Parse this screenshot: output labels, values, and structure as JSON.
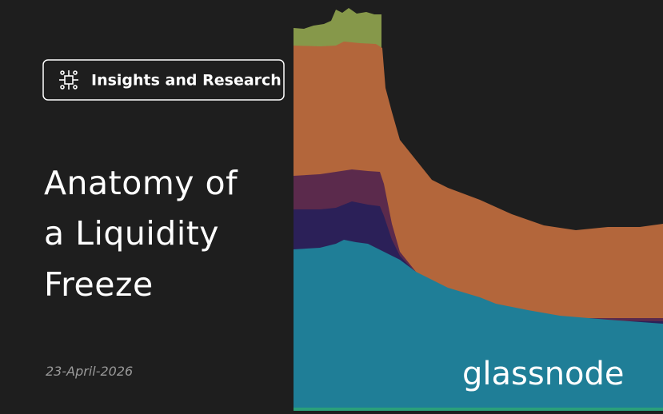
{
  "badge": {
    "label": "Insights and Research"
  },
  "title": {
    "lines": [
      "Anatomy of",
      "a Liquidity",
      "Freeze"
    ]
  },
  "date": "23-April-2026",
  "logo": "glassnode"
}
